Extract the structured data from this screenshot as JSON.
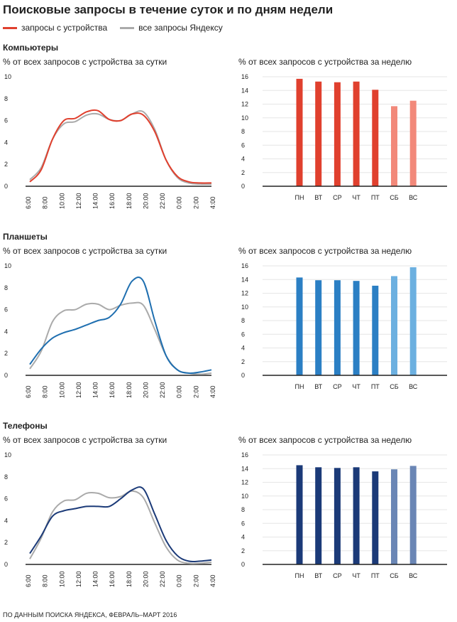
{
  "title": "Поисковые запросы в течение суток и по дням недели",
  "legend": [
    {
      "label": "запросы с устройства",
      "color": "#e0402e"
    },
    {
      "label": "все запросы Яндексу",
      "color": "#aaaaaa"
    }
  ],
  "sections": [
    {
      "label": "Компьютеры"
    },
    {
      "label": "Планшеты"
    },
    {
      "label": "Телефоны"
    }
  ],
  "source": "ПО ДАННЫМ ПОИСКА ЯНДЕКСА, ФЕВРАЛЬ–МАРТ 2016",
  "chart_data": [
    {
      "type": "line",
      "section": "Компьютеры",
      "title": "% от всех запросов с устройства за сутки",
      "xlabel": "",
      "ylabel": "",
      "x_ticks": [
        "6:00",
        "8:00",
        "10:00",
        "12:00",
        "14:00",
        "16:00",
        "18:00",
        "20:00",
        "22:00",
        "0:00",
        "2:00",
        "4:00"
      ],
      "ylim": [
        0,
        10
      ],
      "y_ticks": [
        0,
        2,
        4,
        6,
        8,
        10
      ],
      "series": [
        {
          "name": "запросы с устройства",
          "color": "#e0402e",
          "values": [
            0.4,
            1.5,
            4.3,
            6.0,
            6.2,
            6.8,
            6.9,
            6.1,
            6.0,
            6.6,
            6.5,
            5.0,
            2.4,
            0.9,
            0.4,
            0.3,
            0.3
          ]
        },
        {
          "name": "все запросы Яндексу",
          "color": "#aaaaaa",
          "values": [
            0.6,
            1.7,
            4.3,
            5.7,
            5.9,
            6.5,
            6.6,
            6.1,
            6.0,
            6.6,
            6.8,
            5.2,
            2.4,
            0.8,
            0.3,
            0.2,
            0.2
          ]
        }
      ]
    },
    {
      "type": "bar",
      "section": "Компьютеры",
      "title": "% от всех запросов с устройства за неделю",
      "categories": [
        "ПН",
        "ВТ",
        "СР",
        "ЧТ",
        "ПТ",
        "СБ",
        "ВС"
      ],
      "values": [
        15.7,
        15.3,
        15.2,
        15.3,
        14.1,
        11.7,
        12.5
      ],
      "colors": [
        "#e0402e",
        "#e0402e",
        "#e0402e",
        "#e0402e",
        "#e0402e",
        "#f2897a",
        "#f2897a"
      ],
      "ylim": [
        0,
        16
      ],
      "y_ticks": [
        0,
        2,
        4,
        6,
        8,
        10,
        12,
        14,
        16
      ]
    },
    {
      "type": "line",
      "section": "Планшеты",
      "title": "% от всех запросов с устройства за сутки",
      "xlabel": "",
      "ylabel": "",
      "x_ticks": [
        "6:00",
        "8:00",
        "10:00",
        "12:00",
        "14:00",
        "16:00",
        "18:00",
        "20:00",
        "22:00",
        "0:00",
        "2:00",
        "4:00"
      ],
      "ylim": [
        0,
        10
      ],
      "y_ticks": [
        0,
        2,
        4,
        6,
        8,
        10
      ],
      "series": [
        {
          "name": "запросы с устройства",
          "color": "#1f6fb0",
          "values": [
            1.0,
            2.4,
            3.4,
            3.9,
            4.2,
            4.6,
            5.0,
            5.3,
            6.5,
            8.6,
            8.6,
            5.0,
            1.8,
            0.5,
            0.2,
            0.3,
            0.5
          ]
        },
        {
          "name": "все запросы Яндексу",
          "color": "#aaaaaa",
          "values": [
            0.6,
            2.2,
            4.9,
            5.9,
            6.0,
            6.5,
            6.5,
            6.0,
            6.4,
            6.6,
            6.4,
            4.2,
            1.8,
            0.5,
            0.2,
            0.1,
            0.2
          ]
        }
      ]
    },
    {
      "type": "bar",
      "section": "Планшеты",
      "title": "% от всех запросов с устройства за неделю",
      "categories": [
        "ПН",
        "ВТ",
        "СР",
        "ЧТ",
        "ПТ",
        "СБ",
        "ВС"
      ],
      "values": [
        14.3,
        13.9,
        13.9,
        13.8,
        13.1,
        14.5,
        15.8
      ],
      "colors": [
        "#2b7fc4",
        "#2b7fc4",
        "#2b7fc4",
        "#2b7fc4",
        "#2b7fc4",
        "#6cb0e0",
        "#6cb0e0"
      ],
      "ylim": [
        0,
        16
      ],
      "y_ticks": [
        0,
        2,
        4,
        6,
        8,
        10,
        12,
        14,
        16
      ]
    },
    {
      "type": "line",
      "section": "Телефоны",
      "title": "% от всех запросов с устройства за сутки",
      "xlabel": "",
      "ylabel": "",
      "x_ticks": [
        "6:00",
        "8:00",
        "10:00",
        "12:00",
        "14:00",
        "16:00",
        "18:00",
        "20:00",
        "22:00",
        "0:00",
        "2:00",
        "4:00"
      ],
      "ylim": [
        0,
        10
      ],
      "y_ticks": [
        0,
        2,
        4,
        6,
        8,
        10
      ],
      "series": [
        {
          "name": "запросы с устройства",
          "color": "#1b3a78",
          "values": [
            1.0,
            2.6,
            4.4,
            4.9,
            5.1,
            5.3,
            5.3,
            5.3,
            6.0,
            6.8,
            6.9,
            4.6,
            2.2,
            0.8,
            0.3,
            0.3,
            0.4
          ]
        },
        {
          "name": "все запросы Яндексу",
          "color": "#aaaaaa",
          "values": [
            0.5,
            2.4,
            4.8,
            5.8,
            5.9,
            6.5,
            6.5,
            6.1,
            6.2,
            6.7,
            6.1,
            3.8,
            1.6,
            0.4,
            0.1,
            0.1,
            0.2
          ]
        }
      ]
    },
    {
      "type": "bar",
      "section": "Телефоны",
      "title": "% от всех запросов с устройства за неделю",
      "categories": [
        "ПН",
        "ВТ",
        "СР",
        "ЧТ",
        "ПТ",
        "СБ",
        "ВС"
      ],
      "values": [
        14.5,
        14.2,
        14.1,
        14.2,
        13.6,
        13.9,
        14.4
      ],
      "colors": [
        "#1b3a78",
        "#1b3a78",
        "#1b3a78",
        "#1b3a78",
        "#1b3a78",
        "#6a86b5",
        "#6a86b5"
      ],
      "ylim": [
        0,
        16
      ],
      "y_ticks": [
        0,
        2,
        4,
        6,
        8,
        10,
        12,
        14,
        16
      ]
    }
  ]
}
